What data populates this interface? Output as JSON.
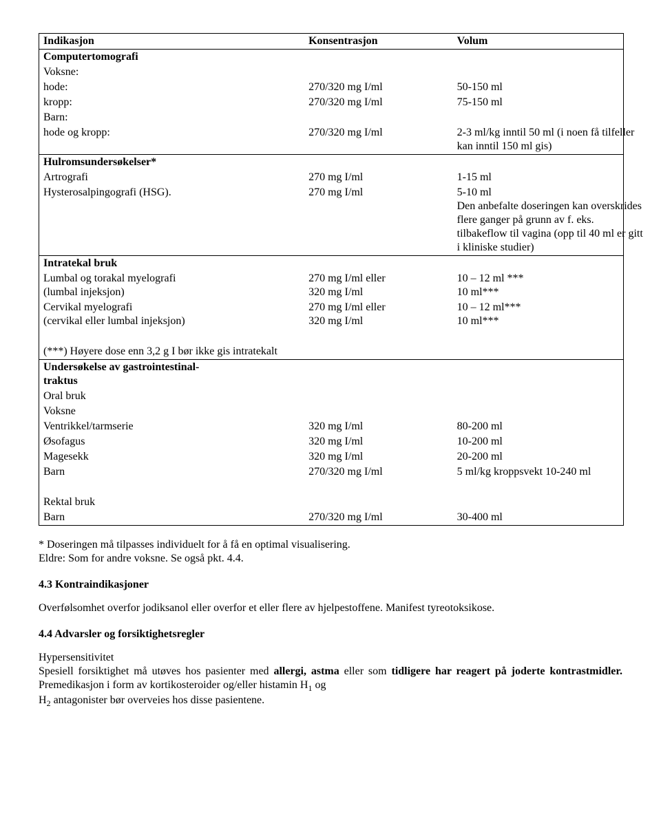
{
  "table": {
    "header": {
      "c1": "Indikasjon",
      "c2": "Konsentrasjon",
      "c3": "Volum"
    },
    "s1": {
      "title": "Computertomografi",
      "r0": {
        "c1": "Voksne:"
      },
      "r1": {
        "c1": "hode:",
        "c2": "270/320 mg I/ml",
        "c3": "50-150 ml"
      },
      "r2": {
        "c1": "kropp:",
        "c2": "270/320 mg I/ml",
        "c3": "75-150 ml"
      },
      "r3": {
        "c1": "Barn:"
      },
      "r4": {
        "c1": "hode og kropp:",
        "c2": "270/320 mg I/ml",
        "c3": "2-3 ml/kg inntil 50 ml (i noen få tilfeller kan inntil 150 ml gis)"
      }
    },
    "s2": {
      "title": "Hulromsundersøkelser*",
      "r1": {
        "c1": "Artrografi",
        "c2": "270 mg I/ml",
        "c3": "1-15 ml"
      },
      "r2": {
        "c1": "Hysterosalpingografi (HSG).",
        "c2": "270 mg I/ml",
        "c3a": "5-10 ml",
        "c3b": "Den anbefalte doseringen kan overskrides flere ganger på grunn av f. eks. tilbakeflow til vagina (opp til 40 ml er gitt i kliniske studier)"
      }
    },
    "s3": {
      "title": "Intratekal bruk",
      "r1": {
        "c1a": "Lumbal og torakal myelografi",
        "c1b": "(lumbal injeksjon)",
        "c2a": "270 mg I/ml eller",
        "c2b": "320 mg I/ml",
        "c3a": "10 – 12 ml ***",
        "c3b": "10 ml***"
      },
      "r2": {
        "c1a": "Cervikal myelografi",
        "c1b": "(cervikal eller lumbal injeksjon)",
        "c2a": "270 mg I/ml eller",
        "c2b": "320 mg I/ml",
        "c3a": "10 – 12 ml***",
        "c3b": "10 ml***"
      },
      "note": "(***) Høyere dose enn 3,2 g I bør ikke gis intratekalt"
    },
    "s4": {
      "titleA": "Undersøkelse  av  gastrointestinal-",
      "titleB": "traktus",
      "sub1": "Oral bruk",
      "sub2": "Voksne",
      "r1": {
        "c1": "Ventrikkel/tarmserie",
        "c2": "320 mg I/ml",
        "c3": "80-200 ml"
      },
      "r2": {
        "c1": "Øsofagus",
        "c2": "320 mg I/ml",
        "c3": "10-200 ml"
      },
      "r3": {
        "c1": "Magesekk",
        "c2": "320 mg I/ml",
        "c3": "20-200 ml"
      },
      "r4": {
        "c1": "Barn",
        "c2": "270/320 mg I/ml",
        "c3": "5 ml/kg kroppsvekt 10-240 ml"
      },
      "sub3": "Rektal bruk",
      "r5": {
        "c1": "Barn",
        "c2": "270/320 mg I/ml",
        "c3": "30-400 ml"
      }
    }
  },
  "afterTable": {
    "l1": "* Doseringen må tilpasses individuelt for å få en optimal visualisering.",
    "l2": "Eldre: Som for andre voksne. Se også pkt. 4.4."
  },
  "sec43": {
    "title": "4.3    Kontraindikasjoner",
    "body": "Overfølsomhet overfor jodiksanol eller overfor et eller flere av hjelpestoffene. Manifest tyreotoksikose."
  },
  "sec44": {
    "title": "4.4    Advarsler og forsiktighetsregler",
    "sub": "Hypersensitivitet",
    "p1a": "Spesiell forsiktighet må utøves hos pasienter med ",
    "p1b": "allergi, astma",
    "p1c": " eller som ",
    "p1d": "tidligere har reagert på joderte kontrastmidler.",
    "p1e": " Premedikasjon i form av kortikosteroider og/eller histamin H",
    "p1f": " og",
    "p2a": "H",
    "p2b": " antagonister bør overveies hos disse pasientene.",
    "sub1": "1",
    "sub2": "2"
  }
}
